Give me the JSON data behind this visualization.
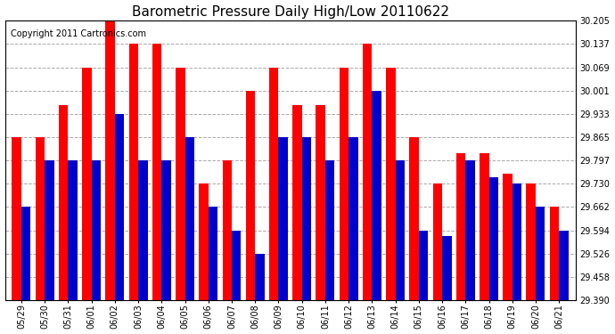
{
  "title": "Barometric Pressure Daily High/Low 20110622",
  "copyright": "Copyright 2011 Cartronics.com",
  "dates": [
    "05/29",
    "05/30",
    "05/31",
    "06/01",
    "06/02",
    "06/03",
    "06/04",
    "06/05",
    "06/06",
    "06/07",
    "06/08",
    "06/09",
    "06/10",
    "06/11",
    "06/12",
    "06/13",
    "06/14",
    "06/15",
    "06/16",
    "06/17",
    "06/18",
    "06/19",
    "06/20",
    "06/21"
  ],
  "highs": [
    29.865,
    29.865,
    29.96,
    30.069,
    30.205,
    30.137,
    30.137,
    30.069,
    29.73,
    29.797,
    30.001,
    30.069,
    29.96,
    29.96,
    30.069,
    30.137,
    30.069,
    29.865,
    29.73,
    29.82,
    29.82,
    29.76,
    29.73,
    29.662
  ],
  "lows": [
    29.662,
    29.797,
    29.797,
    29.797,
    29.933,
    29.797,
    29.797,
    29.865,
    29.662,
    29.594,
    29.526,
    29.865,
    29.865,
    29.797,
    29.865,
    30.001,
    29.797,
    29.594,
    29.578,
    29.797,
    29.75,
    29.73,
    29.662,
    29.594
  ],
  "ylim": [
    29.39,
    30.205
  ],
  "yticks": [
    29.39,
    29.458,
    29.526,
    29.594,
    29.662,
    29.73,
    29.797,
    29.865,
    29.933,
    30.001,
    30.069,
    30.137,
    30.205
  ],
  "high_color": "#ff0000",
  "low_color": "#0000cc",
  "bg_color": "#ffffff",
  "grid_color": "#aaaaaa",
  "bar_width": 0.4,
  "title_fontsize": 11,
  "tick_fontsize": 7,
  "copyright_fontsize": 7
}
